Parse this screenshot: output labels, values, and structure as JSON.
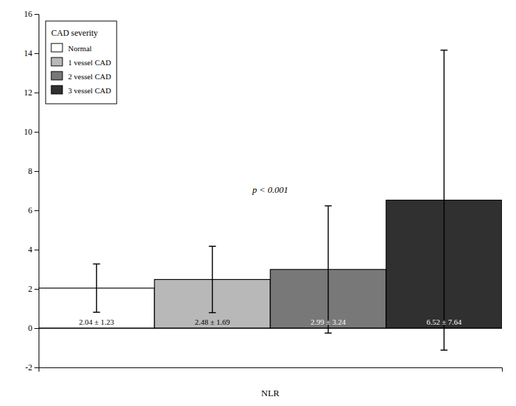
{
  "chart_data": {
    "type": "bar",
    "categories": [
      "Normal",
      "1 vessel CAD",
      "2 vessel CAD",
      "3 vessel CAD"
    ],
    "values": [
      2.04,
      2.48,
      2.99,
      6.52
    ],
    "errors": [
      1.23,
      1.69,
      3.24,
      7.64
    ],
    "value_labels": [
      "2.04 ± 1.23",
      "2.48 ± 1.69",
      "2.99 ± 3.24",
      "6.52 ± 7.64"
    ],
    "data_labels": true,
    "colors": [
      "#ffffff",
      "#b8b8b8",
      "#787878",
      "#303030"
    ],
    "x_label": "NLR",
    "ylim": [
      -2,
      16
    ],
    "yticks": [
      -2,
      0,
      2,
      4,
      6,
      8,
      10,
      12,
      14,
      16
    ],
    "annotations": [
      {
        "text": "p < 0.001",
        "x": 1.5,
        "y": 7.0
      }
    ],
    "legend": "upper left",
    "legend_title": "CAD severity",
    "tick_labels": "y",
    "grid": false
  }
}
